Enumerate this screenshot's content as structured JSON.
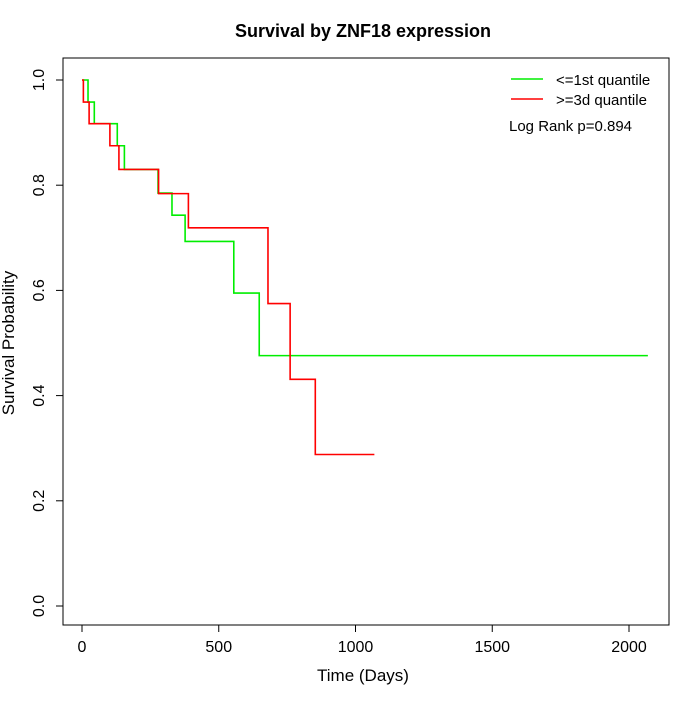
{
  "chart_data": {
    "type": "line",
    "step": true,
    "title": "Survival by ZNF18 expression",
    "xlabel": "Time (Days)",
    "ylabel": "Survival Probability",
    "xlim": [
      0,
      2070
    ],
    "ylim": [
      0,
      1
    ],
    "xticks": [
      0,
      500,
      1000,
      1500,
      2000
    ],
    "yticks": [
      0.0,
      0.2,
      0.4,
      0.6,
      0.8,
      1.0
    ],
    "xtick_labels": [
      "0",
      "500",
      "1000",
      "1500",
      "2000"
    ],
    "ytick_labels": [
      "0.0",
      "0.2",
      "0.4",
      "0.6",
      "0.8",
      "1.0"
    ],
    "grid": false,
    "legend_position": "top-right",
    "annotation": "Log Rank p=0.894",
    "series": [
      {
        "name": "<=1st quantile",
        "color": "#00ee00",
        "x": [
          0,
          22,
          45,
          129,
          155,
          278,
          329,
          377,
          555,
          648,
          2069
        ],
        "y": [
          1.0,
          0.958,
          0.917,
          0.875,
          0.83,
          0.785,
          0.743,
          0.693,
          0.595,
          0.476,
          0.476
        ]
      },
      {
        "name": ">=3d quantile",
        "color": "#ff0000",
        "x": [
          0,
          5,
          26,
          102,
          135,
          280,
          389,
          680,
          761,
          853,
          1069
        ],
        "y": [
          1.0,
          0.958,
          0.917,
          0.875,
          0.83,
          0.784,
          0.719,
          0.575,
          0.431,
          0.288,
          0.288
        ]
      }
    ]
  }
}
